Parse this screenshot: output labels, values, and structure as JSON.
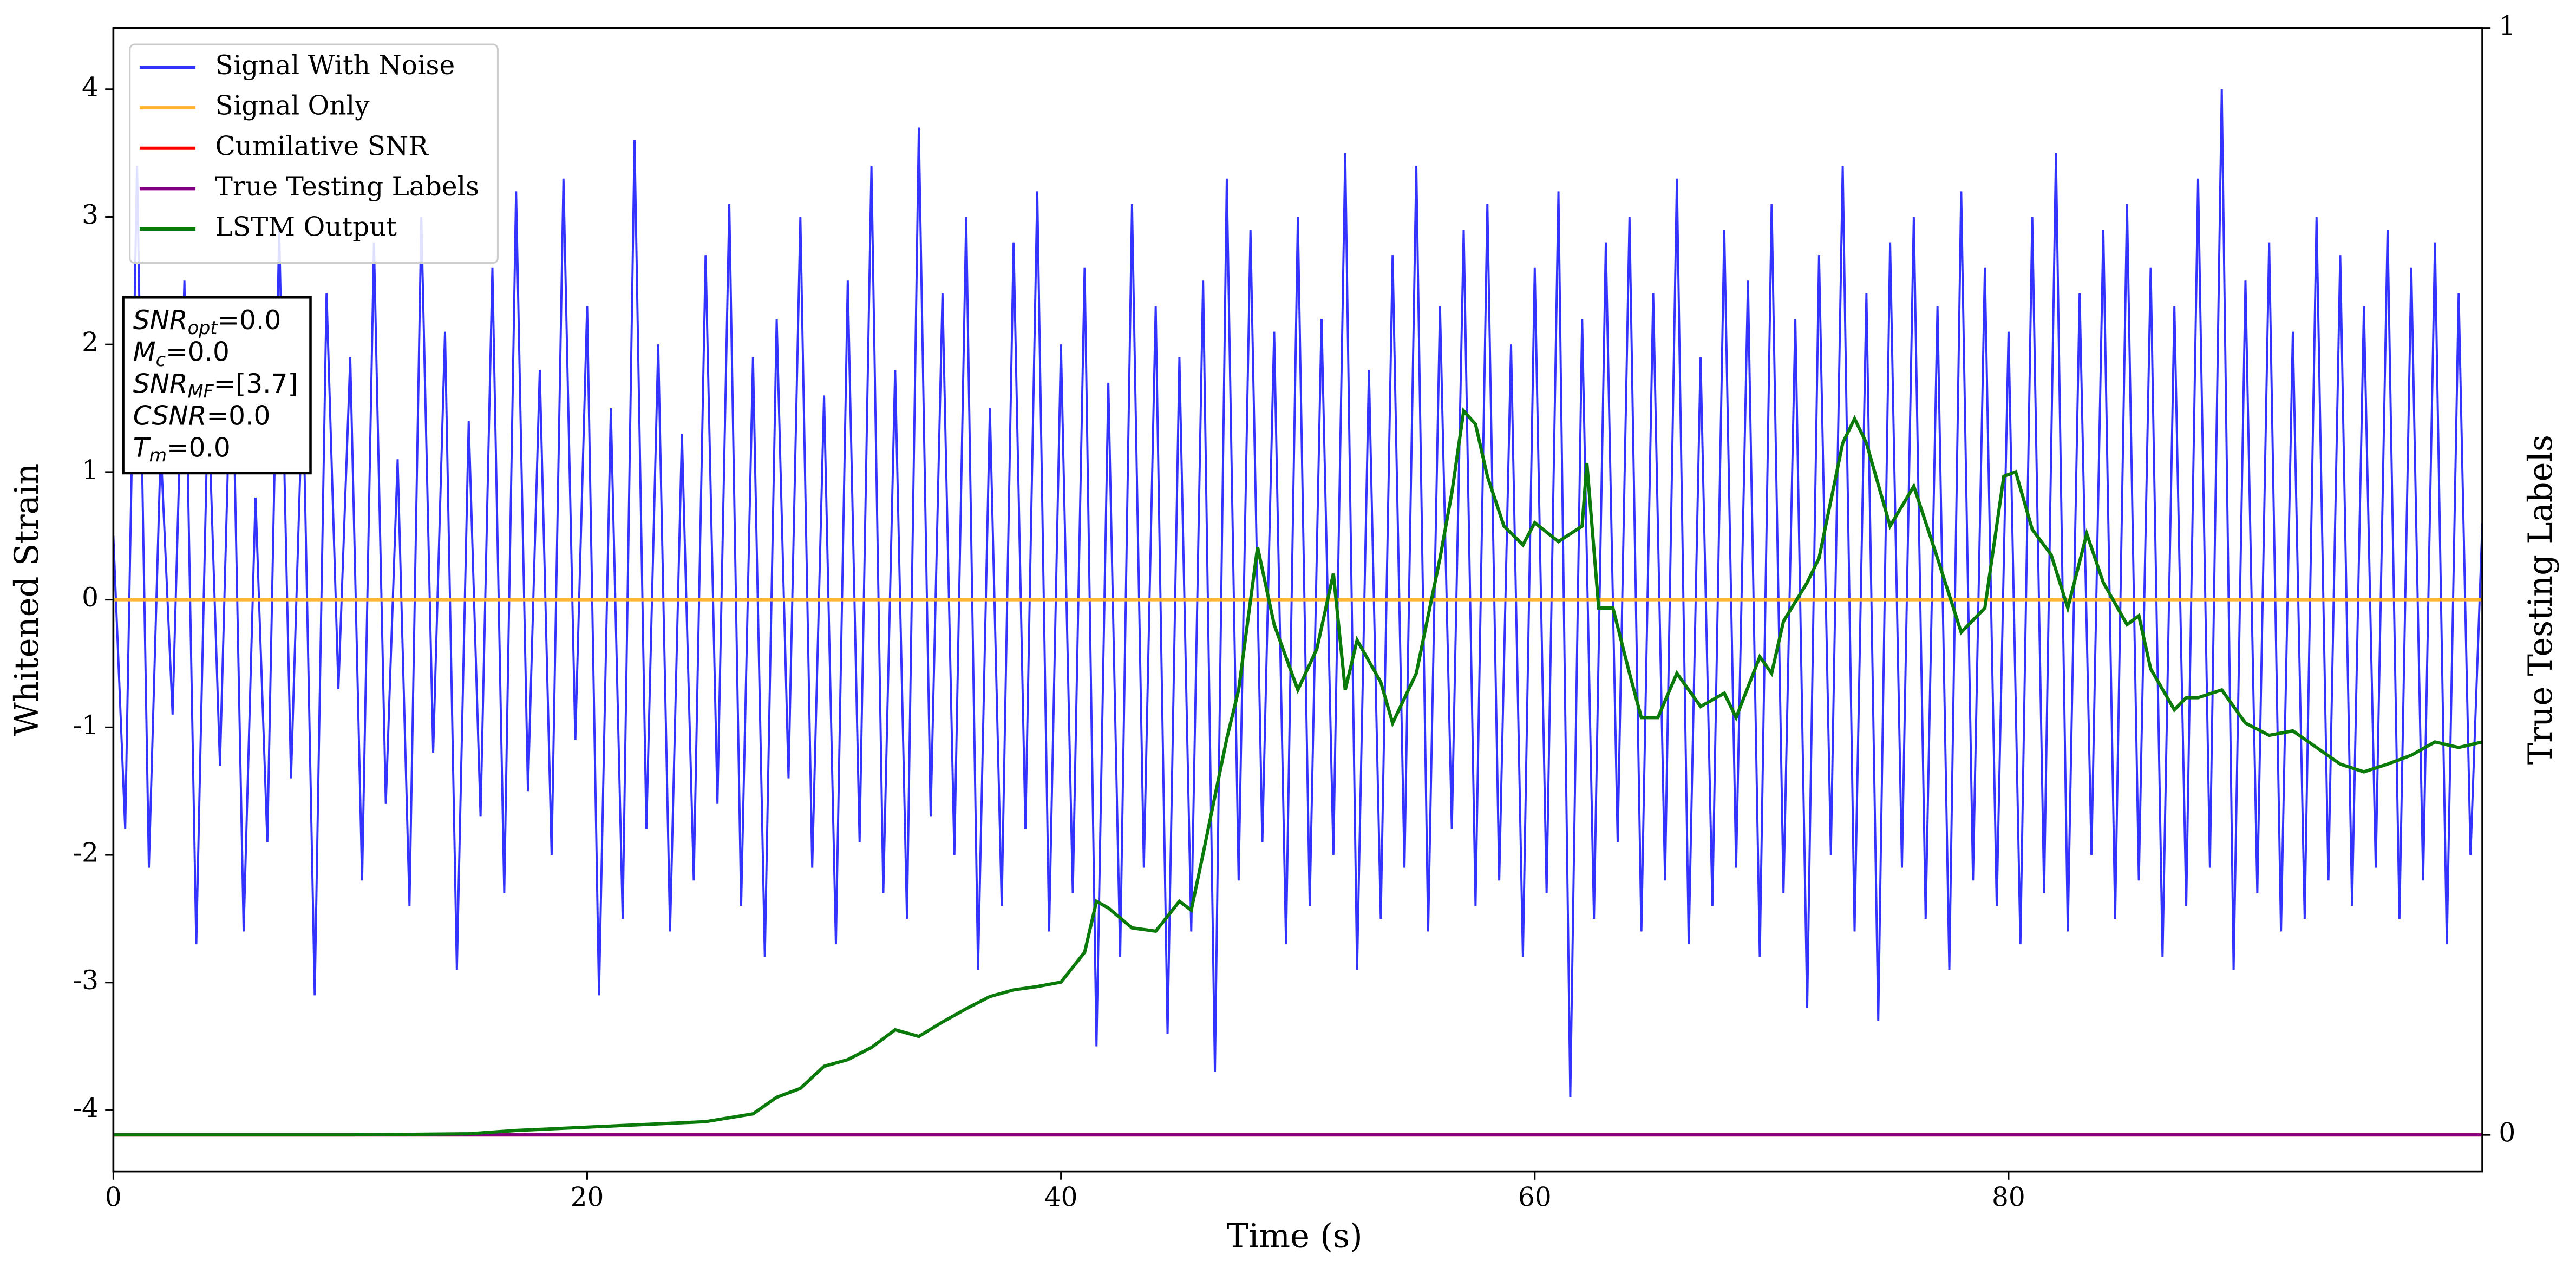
{
  "chart_data": {
    "type": "line",
    "xlabel": "Time (s)",
    "ylabel": "Whitened Strain",
    "y2label": "True Testing Labels",
    "xlim": [
      0,
      100
    ],
    "xticks": [
      0,
      20,
      40,
      60,
      80
    ],
    "ylim": [
      -4.48,
      4.48
    ],
    "yticks": [
      -4,
      -3,
      -2,
      -1,
      0,
      1,
      2,
      3,
      4
    ],
    "y2lim": [
      -0.033,
      1
    ],
    "y2ticks": [
      0,
      1
    ],
    "legend": "upper left",
    "annotation": [
      {
        "var": "SNR",
        "sub": "opt",
        "text": "=0.0"
      },
      {
        "var": "M",
        "sub": "c",
        "text": "=0.0"
      },
      {
        "var": "SNR",
        "sub": "MF",
        "text": "=[3.7]"
      },
      {
        "var": "CSNR",
        "text": "=0.0"
      },
      {
        "var": "T",
        "sub": "m",
        "text": "=0.0"
      }
    ],
    "series": [
      {
        "name": "Signal With Noise",
        "color": "#3333ff",
        "x": [
          0,
          0.5,
          1,
          1.5,
          2,
          2.5,
          3,
          3.5,
          4,
          4.5,
          5,
          5.5,
          6,
          6.5,
          7,
          7.5,
          8,
          8.5,
          9,
          9.5,
          10,
          10.5,
          11,
          11.5,
          12,
          12.5,
          13,
          13.5,
          14,
          14.5,
          15,
          15.5,
          16,
          16.5,
          17,
          17.5,
          18,
          18.5,
          19,
          19.5,
          20,
          20.5,
          21,
          21.5,
          22,
          22.5,
          23,
          23.5,
          24,
          24.5,
          25,
          25.5,
          26,
          26.5,
          27,
          27.5,
          28,
          28.5,
          29,
          29.5,
          30,
          30.5,
          31,
          31.5,
          32,
          32.5,
          33,
          33.5,
          34,
          34.5,
          35,
          35.5,
          36,
          36.5,
          37,
          37.5,
          38,
          38.5,
          39,
          39.5,
          40,
          40.5,
          41,
          41.5,
          42,
          42.5,
          43,
          43.5,
          44,
          44.5,
          45,
          45.5,
          46,
          46.5,
          47,
          47.5,
          48,
          48.5,
          49,
          49.5,
          50,
          50.5,
          51,
          51.5,
          52,
          52.5,
          53,
          53.5,
          54,
          54.5,
          55,
          55.5,
          56,
          56.5,
          57,
          57.5,
          58,
          58.5,
          59,
          59.5,
          60,
          60.5,
          61,
          61.5,
          62,
          62.5,
          63,
          63.5,
          64,
          64.5,
          65,
          65.5,
          66,
          66.5,
          67,
          67.5,
          68,
          68.5,
          69,
          69.5,
          70,
          70.5,
          71,
          71.5,
          72,
          72.5,
          73,
          73.5,
          74,
          74.5,
          75,
          75.5,
          76,
          76.5,
          77,
          77.5,
          78,
          78.5,
          79,
          79.5,
          80,
          80.5,
          81,
          81.5,
          82,
          82.5,
          83,
          83.5,
          84,
          84.5,
          85,
          85.5,
          86,
          86.5,
          87,
          87.5,
          88,
          88.5,
          89,
          89.5,
          90,
          90.5,
          91,
          91.5,
          92,
          92.5,
          93,
          93.5,
          94,
          94.5,
          95,
          95.5,
          96,
          96.5,
          97,
          97.5,
          98,
          98.5,
          99,
          99.5,
          100
        ],
        "values": [
          0.5,
          -1.8,
          3.4,
          -2.1,
          1.2,
          -0.9,
          2.5,
          -2.7,
          1.6,
          -1.3,
          2.2,
          -2.6,
          0.8,
          -1.9,
          2.9,
          -1.4,
          1.7,
          -3.1,
          2.4,
          -0.7,
          1.9,
          -2.2,
          2.8,
          -1.6,
          1.1,
          -2.4,
          3.0,
          -1.2,
          2.1,
          -2.9,
          1.4,
          -1.7,
          2.6,
          -2.3,
          3.2,
          -1.5,
          1.8,
          -2.0,
          3.3,
          -1.1,
          2.3,
          -3.1,
          1.5,
          -2.5,
          3.6,
          -1.8,
          2.0,
          -2.6,
          1.3,
          -2.2,
          2.7,
          -1.6,
          3.1,
          -2.4,
          1.9,
          -2.8,
          2.2,
          -1.4,
          3.0,
          -2.1,
          1.6,
          -2.7,
          2.5,
          -1.9,
          3.4,
          -2.3,
          1.8,
          -2.5,
          3.7,
          -1.7,
          2.4,
          -2.0,
          3.0,
          -2.9,
          1.5,
          -2.4,
          2.8,
          -1.8,
          3.2,
          -2.6,
          2.0,
          -2.3,
          2.6,
          -3.5,
          1.7,
          -2.8,
          3.1,
          -2.1,
          2.3,
          -3.4,
          1.9,
          -2.6,
          2.5,
          -3.7,
          3.3,
          -2.2,
          2.9,
          -1.9,
          2.1,
          -2.7,
          3.0,
          -2.4,
          2.2,
          -2.0,
          3.5,
          -2.9,
          1.8,
          -2.5,
          2.7,
          -2.1,
          3.4,
          -2.6,
          2.3,
          -1.8,
          2.9,
          -2.4,
          3.1,
          -2.2,
          2.0,
          -2.8,
          2.6,
          -2.3,
          3.2,
          -3.9,
          2.2,
          -2.5,
          2.8,
          -1.9,
          3.0,
          -2.6,
          2.4,
          -2.2,
          3.3,
          -2.7,
          1.9,
          -2.4,
          2.9,
          -2.1,
          2.5,
          -2.8,
          3.1,
          -2.3,
          2.2,
          -3.2,
          2.7,
          -2.0,
          3.4,
          -2.6,
          2.4,
          -3.3,
          2.8,
          -2.1,
          3.0,
          -2.5,
          2.3,
          -2.9,
          3.2,
          -2.2,
          2.6,
          -2.4,
          2.1,
          -2.7,
          3.0,
          -2.3,
          3.5,
          -2.6,
          2.4,
          -2.0,
          2.9,
          -2.5,
          3.1,
          -2.2,
          2.6,
          -2.8,
          2.3,
          -2.4,
          3.3,
          -2.1,
          4.0,
          -2.9,
          2.5,
          -2.3,
          2.8,
          -2.6,
          2.1,
          -2.5,
          3.0,
          -2.2,
          2.7,
          -2.4,
          2.3,
          -2.1,
          2.9,
          -2.5,
          2.6,
          -2.2,
          2.8,
          -2.7,
          2.4,
          -2.0,
          0.6
        ]
      },
      {
        "name": "Signal Only",
        "color": "#ffb330",
        "x": [
          0,
          100
        ],
        "values": [
          0,
          0
        ]
      },
      {
        "name": "Cumilative SNR",
        "color": "#ff0000",
        "axis": "y2",
        "x": [
          0,
          100
        ],
        "values": [
          0,
          0
        ]
      },
      {
        "name": "True Testing Labels",
        "color": "#800080",
        "axis": "y2",
        "x": [
          0,
          100
        ],
        "values": [
          0,
          0
        ]
      },
      {
        "name": "LSTM Output",
        "color": "#0a7a0a",
        "axis": "y2",
        "x": [
          0,
          10,
          15,
          17,
          20,
          22,
          25,
          27,
          28,
          29,
          30,
          31,
          32,
          33,
          34,
          35,
          36,
          37,
          38,
          39,
          40,
          41,
          41.5,
          42,
          43,
          44,
          45,
          45.5,
          46,
          47,
          47.5,
          48.3,
          49,
          50,
          50.8,
          51.5,
          52,
          52.5,
          53.5,
          54,
          55,
          56,
          56.5,
          57,
          57.5,
          58,
          58.7,
          59.5,
          60,
          61,
          62,
          62.2,
          62.7,
          63.3,
          64,
          64.5,
          65.2,
          66,
          67,
          68,
          68.5,
          69.5,
          70,
          70.5,
          71.5,
          72,
          73,
          73.5,
          74,
          75,
          76,
          77,
          78,
          79,
          79.8,
          80.3,
          81,
          81.8,
          82.5,
          83.3,
          84,
          85,
          85.5,
          86,
          87,
          87.5,
          88,
          89,
          90,
          91,
          92,
          93,
          94,
          95,
          96,
          97,
          98,
          99,
          100
        ],
        "values": [
          0,
          0,
          0.001,
          0.004,
          0.007,
          0.009,
          0.012,
          0.019,
          0.034,
          0.042,
          0.062,
          0.068,
          0.079,
          0.095,
          0.089,
          0.102,
          0.114,
          0.125,
          0.131,
          0.134,
          0.138,
          0.165,
          0.211,
          0.205,
          0.187,
          0.184,
          0.211,
          0.203,
          0.254,
          0.358,
          0.402,
          0.531,
          0.461,
          0.402,
          0.439,
          0.507,
          0.402,
          0.447,
          0.409,
          0.372,
          0.417,
          0.521,
          0.58,
          0.654,
          0.642,
          0.595,
          0.55,
          0.533,
          0.553,
          0.536,
          0.55,
          0.607,
          0.476,
          0.476,
          0.417,
          0.377,
          0.377,
          0.417,
          0.387,
          0.399,
          0.377,
          0.432,
          0.417,
          0.464,
          0.499,
          0.521,
          0.625,
          0.647,
          0.625,
          0.55,
          0.586,
          0.521,
          0.454,
          0.476,
          0.595,
          0.599,
          0.547,
          0.524,
          0.476,
          0.543,
          0.499,
          0.461,
          0.469,
          0.421,
          0.384,
          0.395,
          0.395,
          0.402,
          0.372,
          0.361,
          0.365,
          0.35,
          0.335,
          0.328,
          0.335,
          0.343,
          0.355,
          0.35,
          0.355
        ]
      }
    ]
  }
}
